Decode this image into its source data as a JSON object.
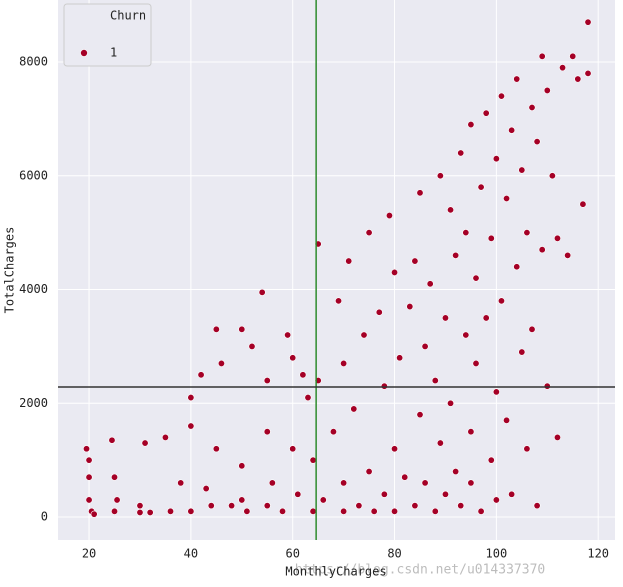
{
  "chart_data": {
    "type": "scatter",
    "xlabel": "MonthlyCharges",
    "ylabel": "TotalCharges",
    "xlim": [
      13.9,
      123.3
    ],
    "ylim": [
      -404,
      9090
    ],
    "xticks": [
      20,
      40,
      60,
      80,
      100,
      120
    ],
    "yticks": [
      0,
      2000,
      4000,
      6000,
      8000
    ],
    "grid": true,
    "background": "#eaeaf2",
    "legend": "upper-left",
    "legend_title": "Churn",
    "vline": {
      "value": 64.6,
      "color": "#2e8b2e"
    },
    "hline": {
      "value": 2285,
      "color": "#333333"
    },
    "watermark": "https://blog.csdn.net/u014337370",
    "series": [
      {
        "name": "1",
        "color": "#a50026",
        "x": [
          19.5,
          20,
          20,
          20.5,
          21,
          20,
          24.5,
          25,
          25,
          25.5,
          30,
          30,
          31,
          32,
          35,
          36,
          38,
          40,
          40,
          40,
          42,
          43,
          44,
          45,
          45,
          46,
          48,
          50,
          50,
          50,
          51,
          52,
          54,
          55,
          55,
          55,
          56,
          58,
          59,
          60,
          60,
          61,
          62,
          63,
          64,
          64,
          65,
          65,
          66,
          68,
          69,
          70,
          70,
          70,
          71,
          72,
          73,
          74,
          75,
          75,
          76,
          77,
          78,
          78,
          79,
          80,
          80,
          80,
          81,
          82,
          83,
          84,
          84,
          85,
          85,
          86,
          86,
          87,
          88,
          88,
          89,
          89,
          90,
          90,
          91,
          91,
          92,
          92,
          93,
          93,
          94,
          94,
          95,
          95,
          95,
          96,
          96,
          97,
          97,
          98,
          98,
          99,
          99,
          100,
          100,
          100,
          101,
          101,
          102,
          102,
          103,
          103,
          104,
          104,
          105,
          105,
          106,
          106,
          107,
          107,
          108,
          108,
          109,
          109,
          110,
          110,
          111,
          112,
          112,
          113,
          114,
          115,
          116,
          117,
          118,
          118
        ],
        "values": [
          1200,
          1000,
          300,
          100,
          50,
          700,
          1350,
          700,
          100,
          300,
          200,
          80,
          1300,
          80,
          1400,
          100,
          600,
          2100,
          1600,
          100,
          2500,
          500,
          200,
          3300,
          1200,
          2700,
          200,
          3300,
          900,
          300,
          100,
          3000,
          3950,
          2400,
          1500,
          200,
          600,
          100,
          3200,
          2800,
          1200,
          400,
          2500,
          2100,
          1000,
          100,
          4800,
          2400,
          300,
          1500,
          3800,
          100,
          600,
          2700,
          4500,
          1900,
          200,
          3200,
          5000,
          800,
          100,
          3600,
          2300,
          400,
          5300,
          1200,
          4300,
          100,
          2800,
          700,
          3700,
          4500,
          200,
          1800,
          5700,
          3000,
          600,
          4100,
          2400,
          100,
          6000,
          1300,
          3500,
          400,
          5400,
          2000,
          4600,
          800,
          6400,
          200,
          3200,
          5000,
          1500,
          6900,
          600,
          4200,
          2700,
          5800,
          100,
          3500,
          7100,
          1000,
          4900,
          6300,
          2200,
          300,
          7400,
          3800,
          5600,
          1700,
          6800,
          400,
          4400,
          7700,
          2900,
          6100,
          5000,
          1200,
          7200,
          3300,
          6600,
          200,
          4700,
          8100,
          7500,
          2300,
          6000,
          4900,
          1400,
          7900,
          4600,
          8100,
          7700,
          5500,
          8700,
          7800
        ]
      }
    ]
  }
}
